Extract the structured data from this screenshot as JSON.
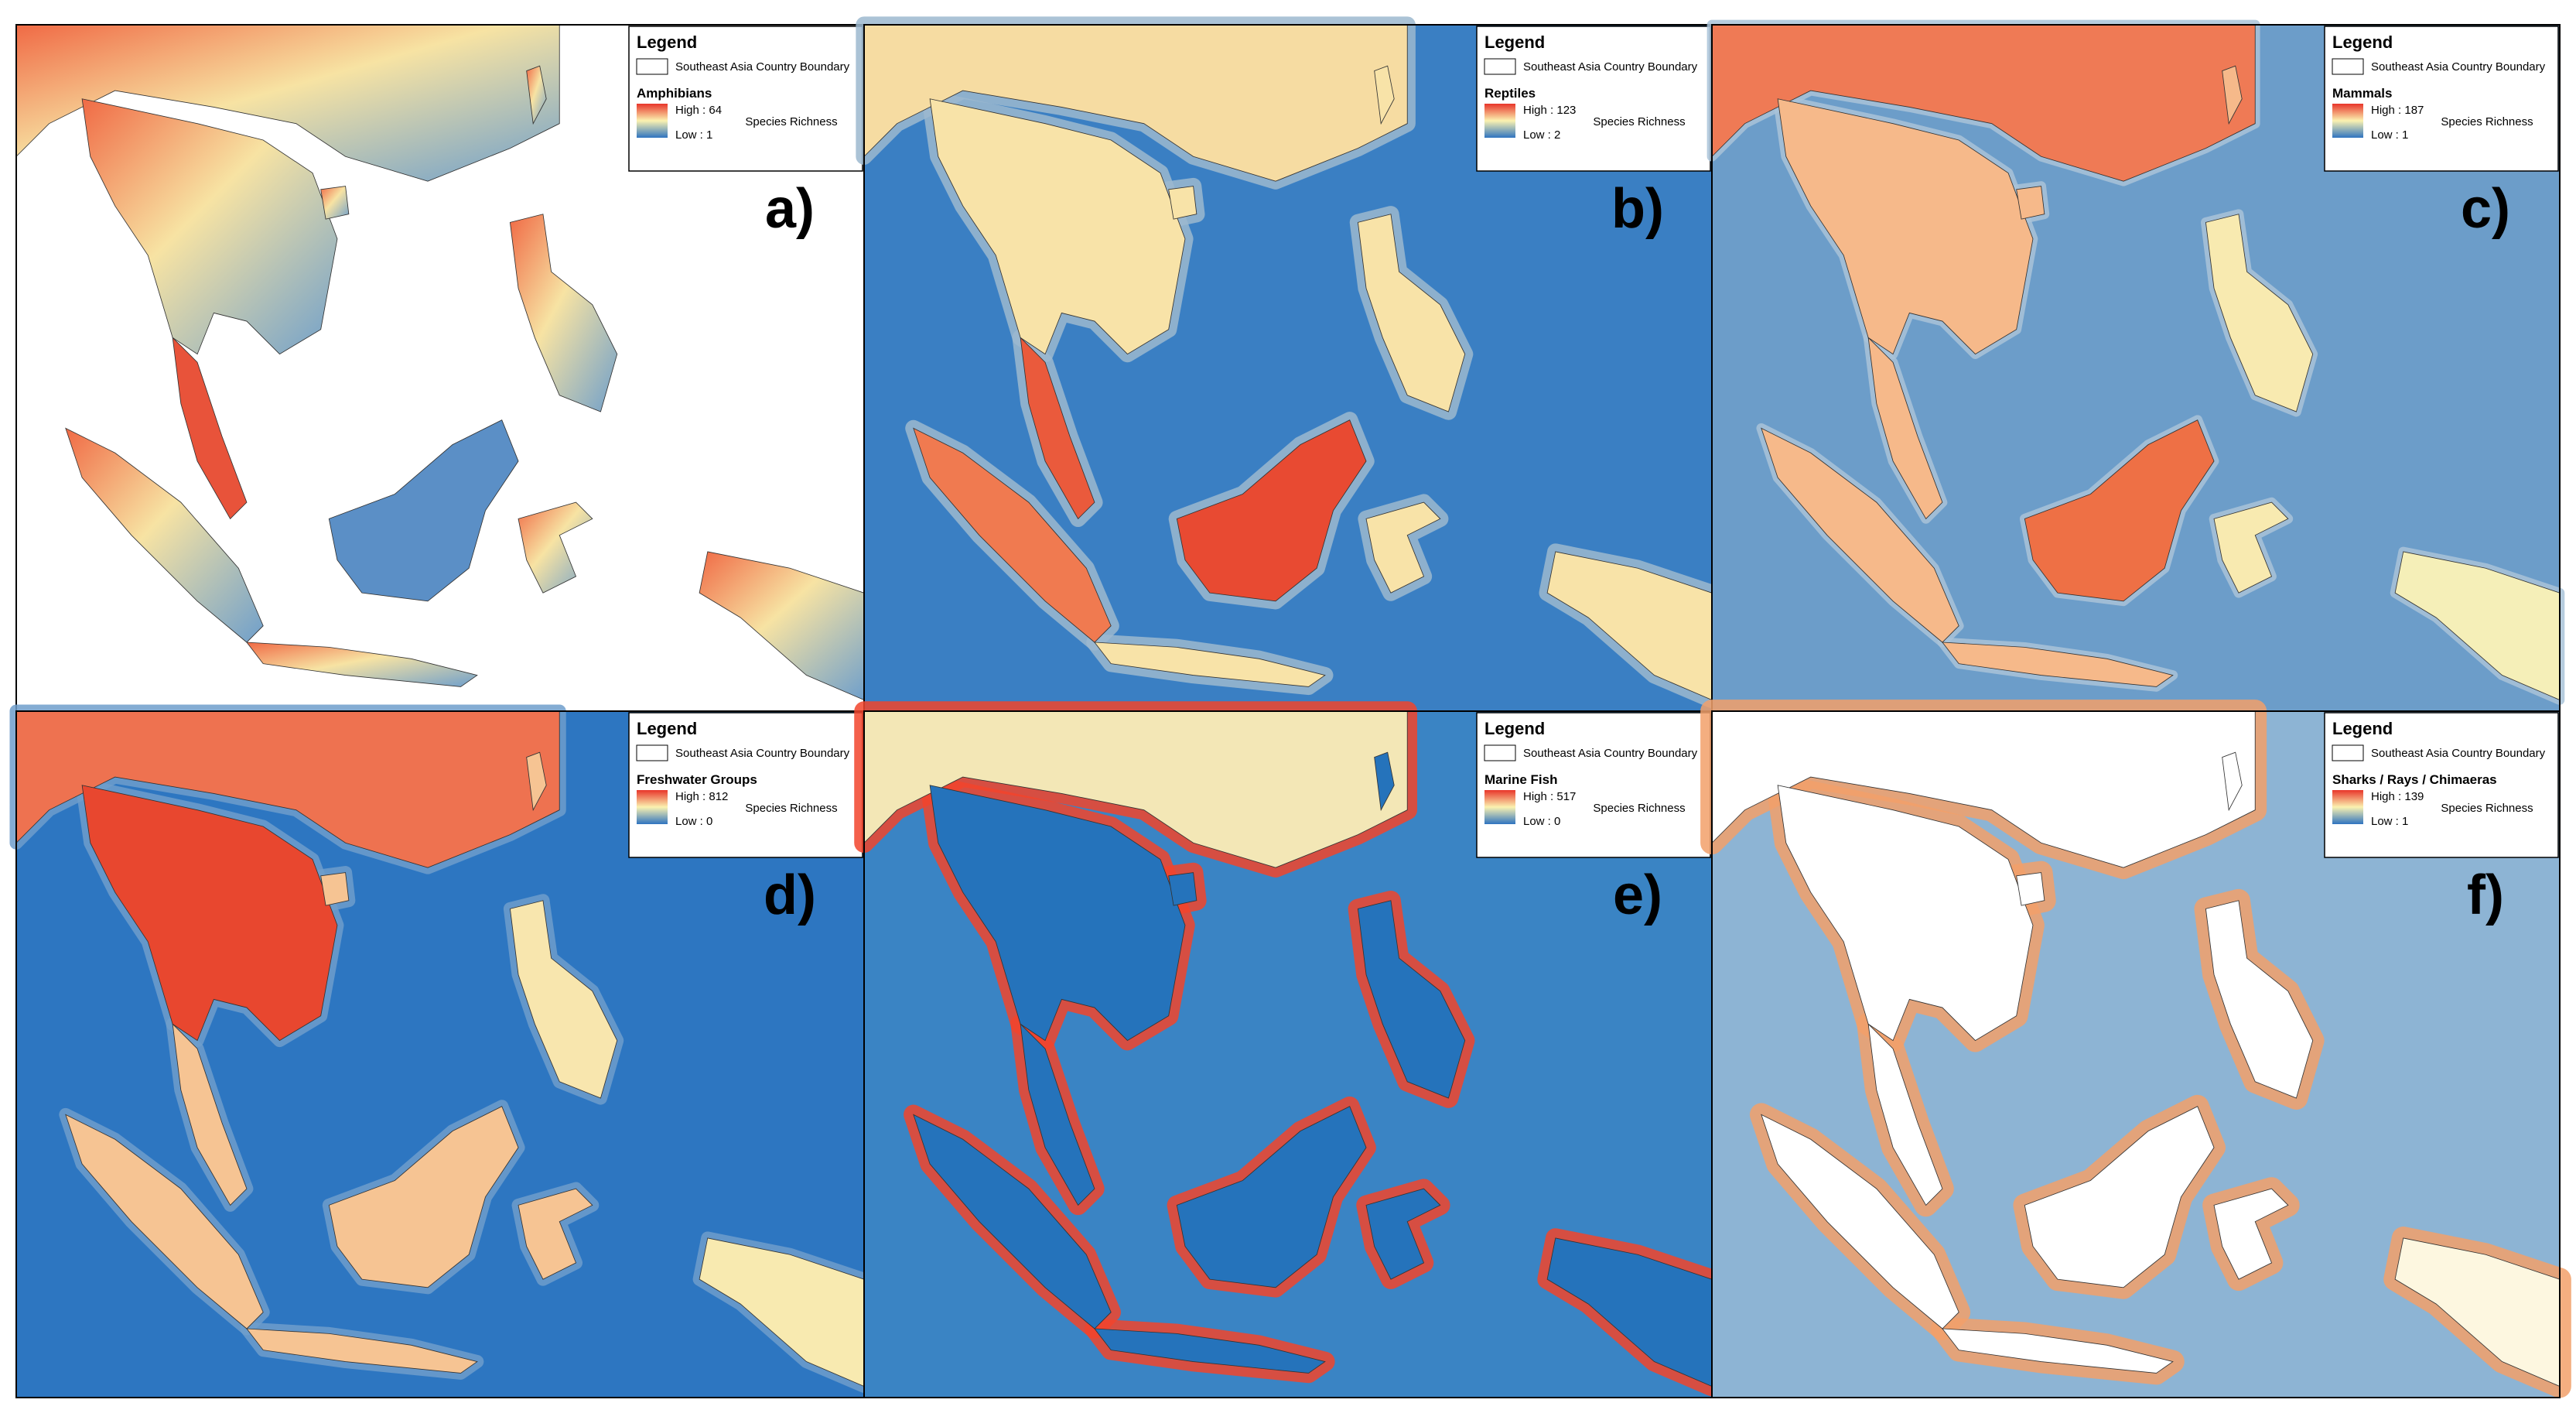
{
  "legend_title": "Legend",
  "boundary_label": "Southeast Asia Country Boundary",
  "ramp_label": "Species Richness",
  "panels": [
    {
      "letter": "a)",
      "layer": "Amphibians",
      "high": "High : 64",
      "low": "Low : 1"
    },
    {
      "letter": "b)",
      "layer": "Reptiles",
      "high": "High : 123",
      "low": "Low : 2"
    },
    {
      "letter": "c)",
      "layer": "Mammals",
      "high": "High : 187",
      "low": "Low : 1"
    },
    {
      "letter": "d)",
      "layer": "Freshwater Groups",
      "high": "High : 812",
      "low": "Low : 0"
    },
    {
      "letter": "e)",
      "layer": "Marine Fish",
      "high": "High : 517",
      "low": "Low : 0"
    },
    {
      "letter": "f)",
      "layer": "Sharks / Rays / Chimaeras",
      "high": "High : 139",
      "low": "Low : 1"
    }
  ]
}
